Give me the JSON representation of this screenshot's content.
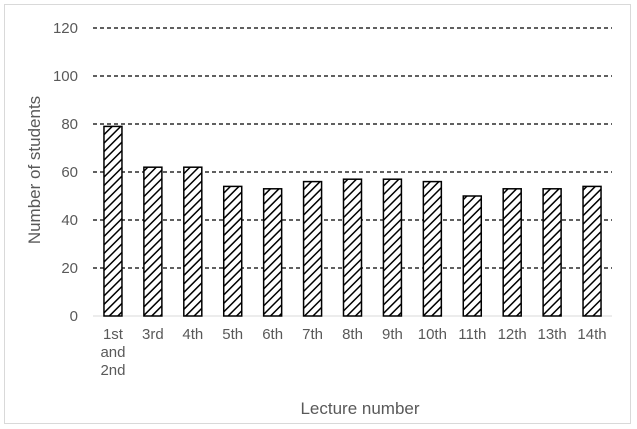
{
  "chart_data": {
    "type": "bar",
    "title": "",
    "xlabel": "Lecture number",
    "ylabel": "Number of students",
    "categories": [
      "1st and 2nd",
      "3rd",
      "4th",
      "5th",
      "6th",
      "7th",
      "8th",
      "9th",
      "10th",
      "11th",
      "12th",
      "13th",
      "14th"
    ],
    "category_label_lines": [
      [
        "1st",
        "and",
        "2nd"
      ],
      [
        "3rd"
      ],
      [
        "4th"
      ],
      [
        "5th"
      ],
      [
        "6th"
      ],
      [
        "7th"
      ],
      [
        "8th"
      ],
      [
        "9th"
      ],
      [
        "10th"
      ],
      [
        "11th"
      ],
      [
        "12th"
      ],
      [
        "13th"
      ],
      [
        "14th"
      ]
    ],
    "values": [
      79,
      62,
      62,
      54,
      53,
      56,
      57,
      57,
      56,
      50,
      53,
      53,
      54
    ],
    "ylim": [
      0,
      120
    ],
    "yticks": [
      0,
      20,
      40,
      60,
      80,
      100,
      120
    ],
    "grid": true,
    "grid_style": "dashed",
    "bar_fill": "diagonal-hatch",
    "colors": {
      "bar_stroke": "#000000",
      "hatch": "#000000",
      "grid": "#000000",
      "text": "#595959",
      "frame": "#d9d9d9"
    }
  }
}
